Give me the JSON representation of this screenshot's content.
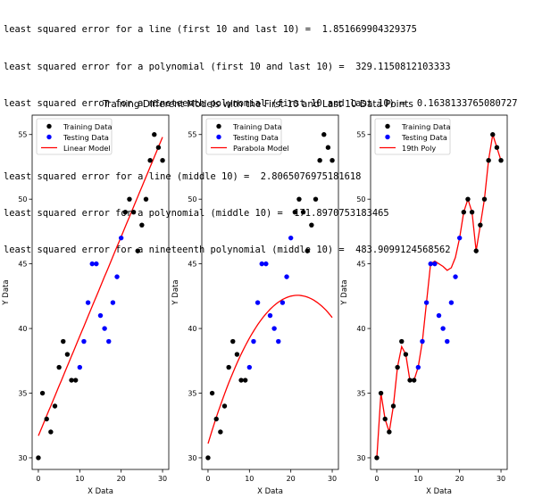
{
  "output_lines": [
    {
      "text": "least squared error for a line (first 10 and last 10) =  1.851669904329375"
    },
    {
      "text": "least squared error for a polynomial (first 10 and last 10) =  329.1150812103333"
    },
    {
      "text": "least squared error for a nineteenth polynomial (first 10 and last 10) =  0.1638133765080727"
    },
    {
      "text": ""
    },
    {
      "text": "least squared error for a line (middle 10) =  2.8065076975181618"
    },
    {
      "text": "least squared error for a polynomial (middle 10) =  171.8970753183465"
    },
    {
      "text": "least squared error for a nineteenth polynomial (middle 10) =  483.9099124568562"
    }
  ],
  "colors": {
    "training": "#000000",
    "testing": "#0000ff",
    "model": "#ff0000",
    "axis": "#000000"
  },
  "chart_data": {
    "type": "scatter",
    "suptitle": "Training Different Models with the First 10 and Last 10 Data Points",
    "xlabel": "X Data",
    "ylabel": "Y Data",
    "xlim": [
      -1.5,
      31.5
    ],
    "ylim": [
      29.1,
      56.5
    ],
    "xticks": [
      0,
      10,
      20,
      30
    ],
    "yticks": [
      30,
      35,
      40,
      45,
      50,
      55
    ],
    "legend_position": "upper-left",
    "training": {
      "name": "Training Data",
      "x": [
        0,
        1,
        2,
        3,
        4,
        5,
        6,
        7,
        8,
        9,
        21,
        22,
        23,
        24,
        25,
        26,
        27,
        28,
        29,
        30
      ],
      "y": [
        30,
        35,
        33,
        32,
        34,
        37,
        39,
        38,
        36,
        36,
        49,
        50,
        49,
        46,
        48,
        50,
        53,
        55,
        54,
        53
      ]
    },
    "testing": {
      "name": "Testing Data",
      "x": [
        10,
        11,
        12,
        13,
        14,
        15,
        16,
        17,
        18,
        19
      ],
      "y": [
        37,
        39,
        42,
        45,
        45,
        41,
        40,
        39,
        42,
        44
      ]
    },
    "testing_extra": {
      "x": [
        20
      ],
      "y": [
        47
      ]
    },
    "panels": [
      {
        "model_name": "Linear Model",
        "kind": "linear",
        "coefficients": [
          31.7,
          0.77
        ]
      },
      {
        "model_name": "Parabola Model",
        "kind": "quadratic",
        "coefficients": [
          31.1,
          1.06,
          -0.0245
        ]
      },
      {
        "model_name": "19th Poly",
        "kind": "interpolated",
        "curve_x": [
          0,
          1,
          2,
          3,
          4,
          5,
          6,
          7,
          8,
          9,
          10,
          11,
          12,
          13,
          14,
          15,
          16,
          17,
          18,
          19,
          20,
          21,
          22,
          23,
          24,
          25,
          26,
          27,
          28,
          29,
          30
        ],
        "curve_y": [
          30,
          35,
          33,
          32,
          34,
          37,
          38.6,
          38,
          36,
          36,
          37,
          39,
          42,
          45,
          45.2,
          45,
          44.8,
          44.5,
          44.7,
          45.5,
          47,
          49,
          50,
          49,
          46,
          48,
          50,
          53,
          55,
          54,
          53
        ]
      }
    ]
  }
}
